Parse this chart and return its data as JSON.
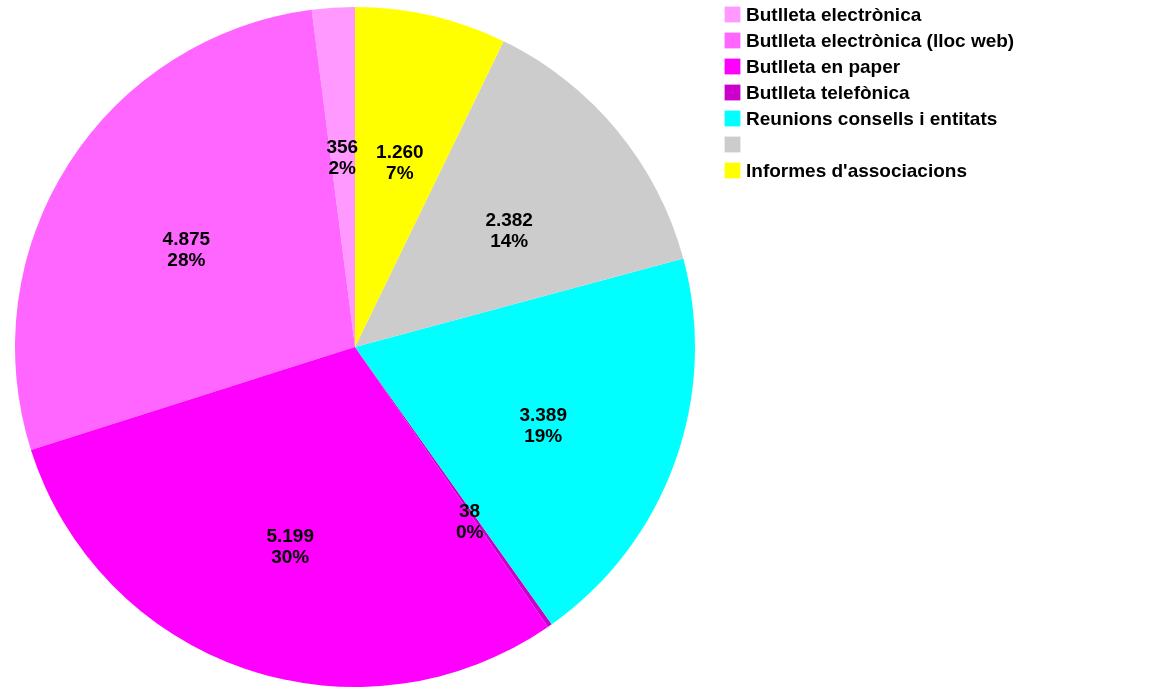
{
  "chart_data": {
    "type": "pie",
    "categories": [
      "Butlleta electrònica",
      "Butlleta electrònica (lloc web)",
      "Butlleta en paper",
      "Butlleta telefònica",
      "Reunions consells i entitats",
      null,
      "Informes d'associacions"
    ],
    "values": [
      356,
      4875,
      5199,
      38,
      3389,
      2382,
      1260
    ],
    "colors": [
      "#ff99ff",
      "#ff66ff",
      "#ff00ff",
      "#cc00cc",
      "#00ffff",
      "#cccccc",
      "#ffff00"
    ],
    "value_labels": [
      "356\n2%",
      "4.875\n28%",
      "5.199\n30%",
      "38\n0%",
      "3.389\n19%",
      "2.382\n14%",
      "1.260\n7%"
    ],
    "legend": "right"
  }
}
